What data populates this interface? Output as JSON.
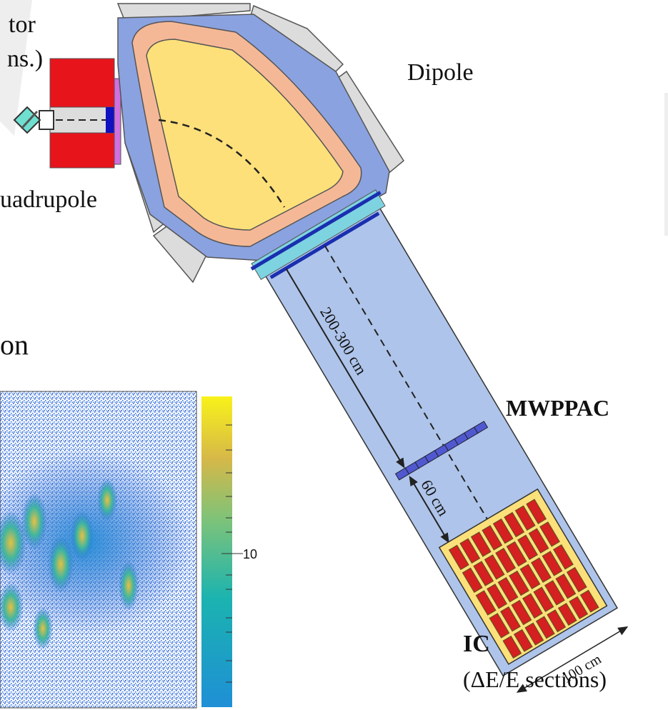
{
  "labels": {
    "detector": "tor",
    "detector_note": "ns.)",
    "dipole": "Dipole",
    "quadrupole": "uadrupole",
    "section": "on",
    "flight_path": "200-300 cm",
    "mwppac": "MWPPAC",
    "gap": "60 cm",
    "colorbar_tick": "10",
    "ic": "IC",
    "ic_note": "(ΔE/E sections)",
    "width": "100 cm"
  }
}
